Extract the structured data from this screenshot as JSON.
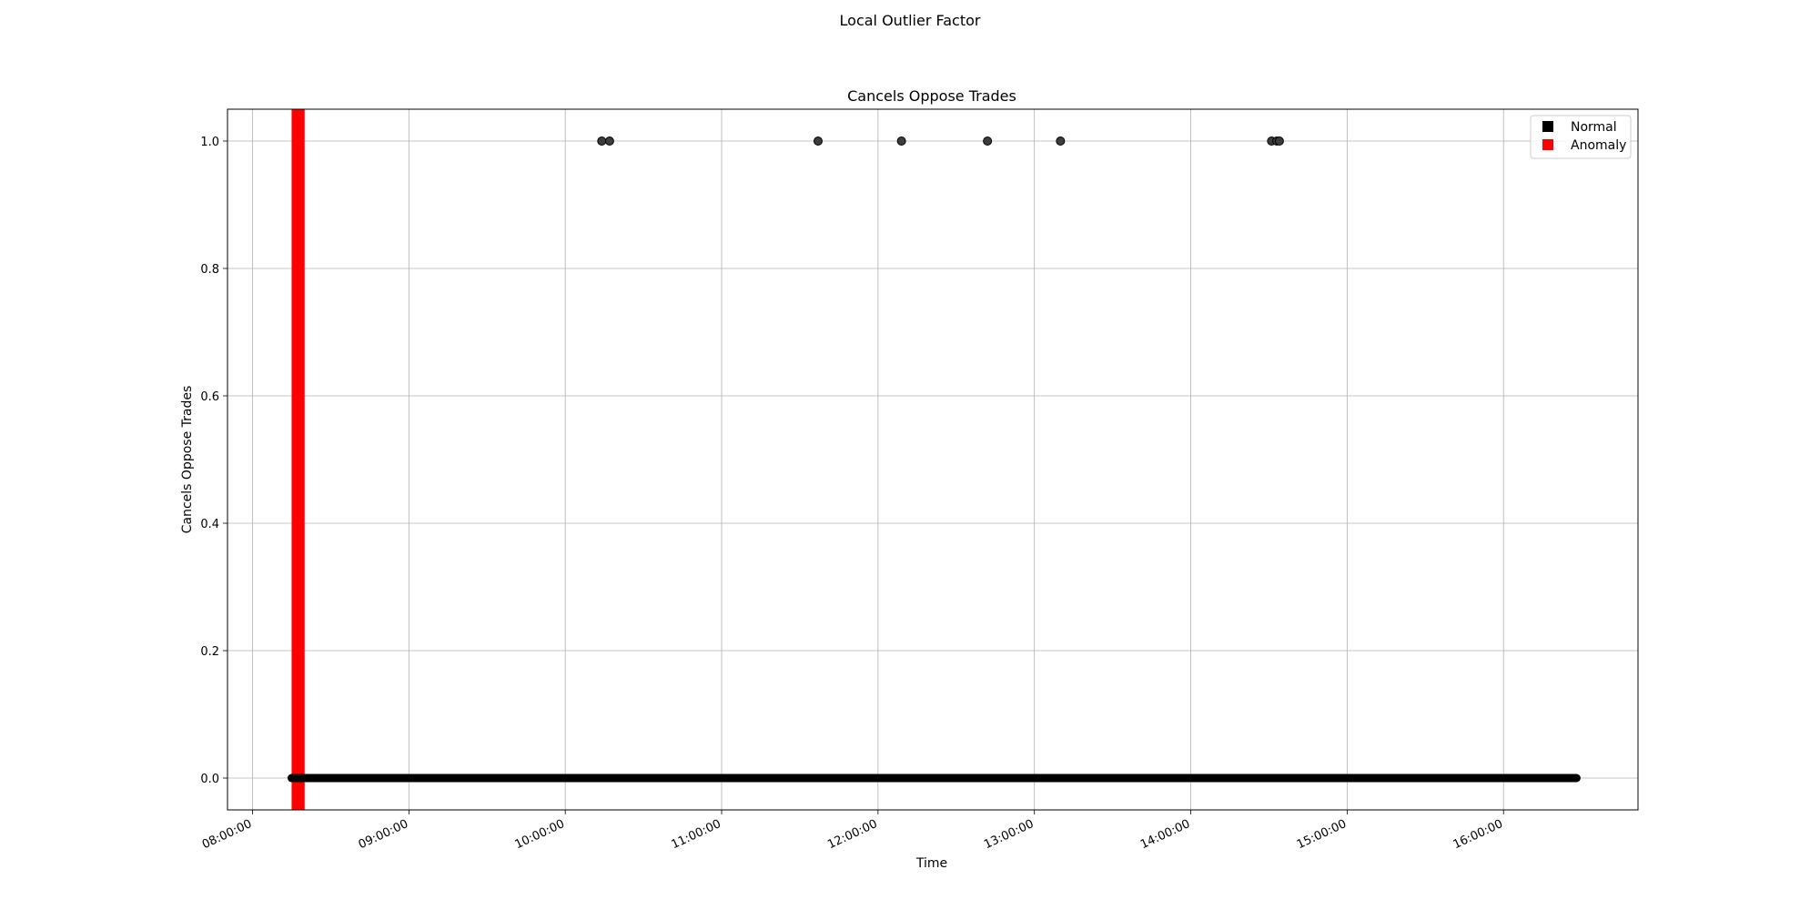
{
  "figure": {
    "suptitle": "Local Outlier Factor"
  },
  "chart_data": {
    "type": "scatter",
    "title": "Cancels Oppose Trades",
    "xlabel": "Time",
    "ylabel": "Cancels Oppose Trades",
    "xlim": [
      "07:50:24",
      "16:51:36"
    ],
    "ylim": [
      -0.05,
      1.05
    ],
    "x_ticks": [
      "08:00:00",
      "09:00:00",
      "10:00:00",
      "11:00:00",
      "12:00:00",
      "13:00:00",
      "14:00:00",
      "15:00:00",
      "16:00:00"
    ],
    "y_ticks": [
      "0.0",
      "0.2",
      "0.4",
      "0.6",
      "0.8",
      "1.0"
    ],
    "grid": true,
    "legend": {
      "placement": "upper right",
      "entries": [
        "Normal",
        "Anomaly"
      ]
    },
    "colors": {
      "normal": "#000000",
      "anomaly": "#ff0000"
    },
    "anomaly_band": {
      "start": "08:15:00",
      "end": "08:20:00"
    },
    "series": [
      {
        "name": "Normal",
        "zero_run": {
          "start": "08:15:00",
          "end": "16:28:00",
          "y": 0
        },
        "points": [
          {
            "x": "10:14:00",
            "y": 1
          },
          {
            "x": "10:17:00",
            "y": 1
          },
          {
            "x": "11:37:00",
            "y": 1
          },
          {
            "x": "12:09:00",
            "y": 1
          },
          {
            "x": "12:42:00",
            "y": 1
          },
          {
            "x": "13:10:00",
            "y": 1
          },
          {
            "x": "14:31:00",
            "y": 1
          },
          {
            "x": "14:33:00",
            "y": 1
          },
          {
            "x": "14:34:00",
            "y": 1
          }
        ]
      }
    ]
  }
}
